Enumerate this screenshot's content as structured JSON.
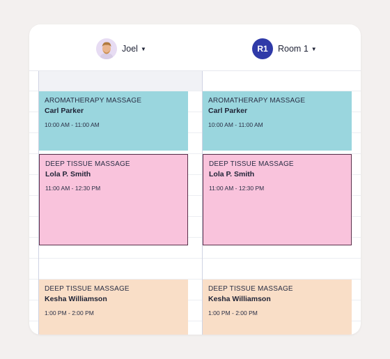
{
  "colors": {
    "background": "#f3f0ef",
    "teal": "#9ad6de",
    "pink": "#f9c3dc",
    "peach": "#f9dec7",
    "room_badge": "#2f3aa8"
  },
  "resources": [
    {
      "name": "Joel",
      "avatar": "person-photo-icon"
    },
    {
      "name": "Room 1",
      "initials": "R1"
    }
  ],
  "columns": [
    {
      "appointments": [
        {
          "service": "AROMATHERAPY MASSAGE",
          "client": "Carl Parker",
          "time": "10:00 AM - 11:00 AM"
        },
        {
          "service": "DEEP TISSUE MASSAGE",
          "client": "Lola P. Smith",
          "time": "11:00 AM - 12:30 PM"
        },
        {
          "service": "DEEP TISSUE MASSAGE",
          "client": "Kesha Williamson",
          "time": "1:00 PM - 2:00 PM"
        }
      ]
    },
    {
      "appointments": [
        {
          "service": "AROMATHERAPY MASSAGE",
          "client": "Carl Parker",
          "time": "10:00 AM - 11:00 AM"
        },
        {
          "service": "DEEP TISSUE MASSAGE",
          "client": "Lola P. Smith",
          "time": "11:00 AM - 12:30 PM"
        },
        {
          "service": "DEEP TISSUE MASSAGE",
          "client": "Kesha Williamson",
          "time": "1:00 PM - 2:00 PM"
        }
      ]
    }
  ]
}
